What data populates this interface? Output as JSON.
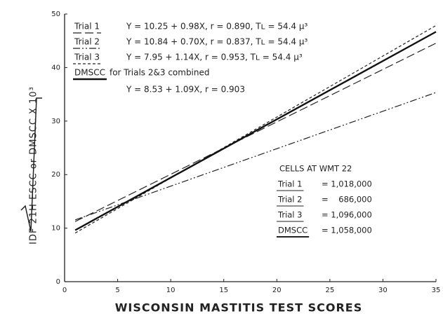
{
  "chart_data": {
    "type": "line",
    "xlabel": "WISCONSIN MASTITIS TEST SCORES",
    "ylabel": "IDF 21H ESCC or DMSCC X 10³",
    "xlim": [
      0,
      35
    ],
    "xticks": [
      0,
      5,
      10,
      15,
      20,
      25,
      30,
      35
    ],
    "ylim": [
      0,
      50
    ],
    "yticks": [
      0,
      10,
      20,
      30,
      40,
      50
    ],
    "series": [
      {
        "name": "Trial 1",
        "color": "#222",
        "style": "long-dashed",
        "x": [
          1,
          35
        ],
        "values": [
          11.23,
          44.55
        ],
        "equation": "Y = 10.25 + 0.98X, r = 0.890, Tʟ = 54.4 μ³"
      },
      {
        "name": "Trial 2",
        "color": "#222",
        "style": "dash-dot-dot",
        "x": [
          1,
          35
        ],
        "values": [
          11.54,
          35.34
        ],
        "equation": "Y = 10.84 + 0.70X, r = 0.837, Tʟ = 54.4 μ³"
      },
      {
        "name": "Trial 3",
        "color": "#222",
        "style": "dashed",
        "x": [
          1,
          35
        ],
        "values": [
          9.09,
          47.85
        ],
        "equation": "Y = 7.95 + 1.14X, r = 0.953, Tʟ = 54.4 μ³"
      },
      {
        "name": "DMSCC",
        "color": "#111",
        "style": "solid",
        "x": [
          1,
          35
        ],
        "values": [
          9.62,
          46.68
        ],
        "note": "for Trials 2&3 combined",
        "equation": "Y = 8.53 + 1.09X, r = 0.903"
      }
    ],
    "cells_table": {
      "title": "CELLS AT WMT 22",
      "rows": [
        {
          "label": "Trial 1",
          "value": "= 1,018,000"
        },
        {
          "label": "Trial 2",
          "value": "=    686,000"
        },
        {
          "label": "Trial 3",
          "value": "= 1,096,000"
        },
        {
          "label": "DMSCC",
          "value": "= 1,058,000"
        }
      ]
    }
  }
}
